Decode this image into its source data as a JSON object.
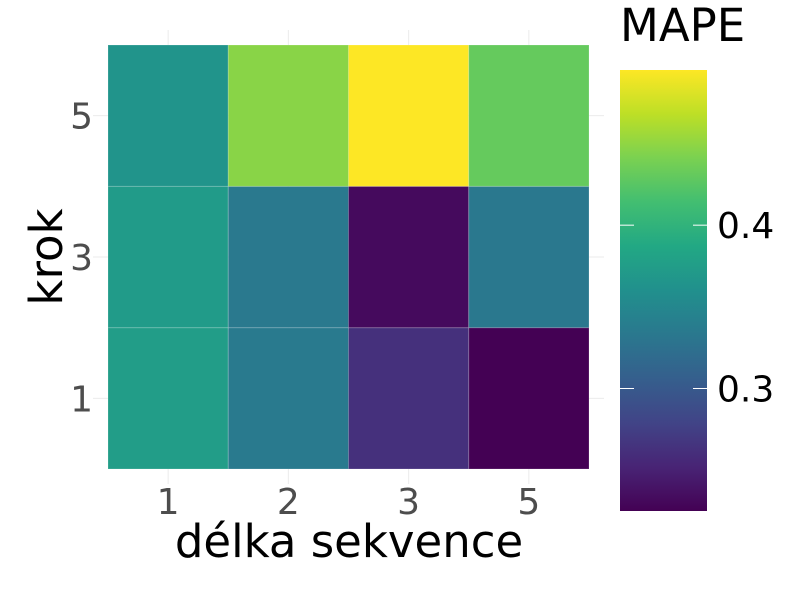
{
  "chart_data": {
    "type": "heatmap",
    "xlabel": "délka sekvence",
    "ylabel": "krok",
    "x_categories": [
      "1",
      "2",
      "3",
      "5"
    ],
    "y_categories": [
      "1",
      "3",
      "5"
    ],
    "values": [
      [
        0.375,
        0.335,
        0.262,
        0.225
      ],
      [
        0.372,
        0.334,
        0.232,
        0.333
      ],
      [
        0.365,
        0.447,
        0.495,
        0.431
      ]
    ],
    "color_range": [
      0.225,
      0.495
    ],
    "colorscale": "viridis",
    "legend": {
      "title": "MAPE",
      "placement": "right",
      "ticks": [
        {
          "value": 0.3,
          "label": "0.3"
        },
        {
          "value": 0.4,
          "label": "0.4"
        }
      ]
    },
    "grid": true
  }
}
